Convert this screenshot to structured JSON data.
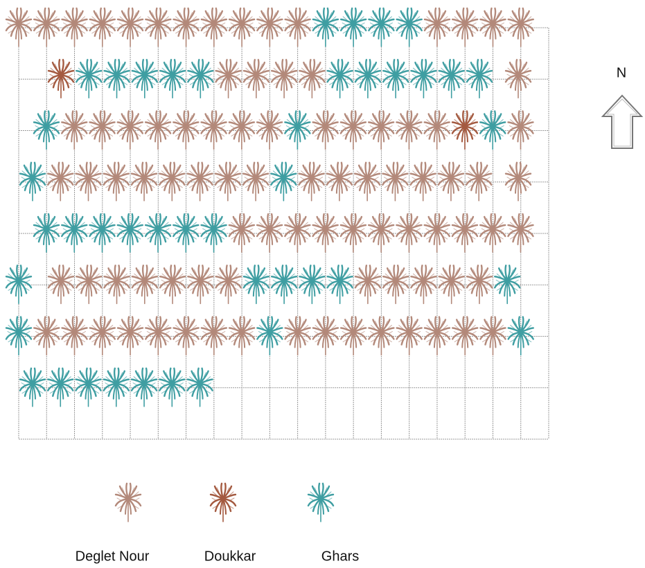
{
  "north_label": "N",
  "legend": [
    {
      "label": "Deglet Nour",
      "color": "#b3897a"
    },
    {
      "label": "Doukkar",
      "color": "#a45a40"
    },
    {
      "label": "Ghars",
      "color": "#3f9ea2"
    }
  ]
}
